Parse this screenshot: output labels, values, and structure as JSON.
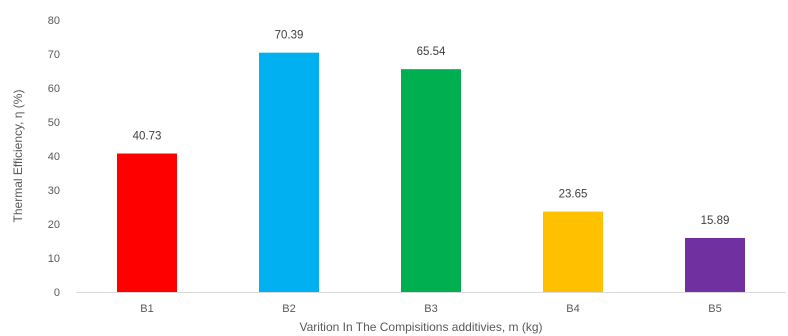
{
  "chart_data": {
    "type": "bar",
    "title": "",
    "xlabel": "Varition In The Compisitions additivies, m (kg)",
    "ylabel": "Thermal Efficiency, η (%)",
    "categories": [
      "B1",
      "B2",
      "B3",
      "B4",
      "B5"
    ],
    "values": [
      40.73,
      70.39,
      65.54,
      23.65,
      15.89
    ],
    "value_labels": [
      "40.73",
      "70.39",
      "65.54",
      "23.65",
      "15.89"
    ],
    "colors": [
      "#ff0000",
      "#00b0f0",
      "#00b050",
      "#ffc000",
      "#7030a0"
    ],
    "ylim": [
      0,
      80
    ],
    "yticks": [
      0,
      10,
      20,
      30,
      40,
      50,
      60,
      70,
      80
    ],
    "grid": false,
    "legend": "none"
  }
}
